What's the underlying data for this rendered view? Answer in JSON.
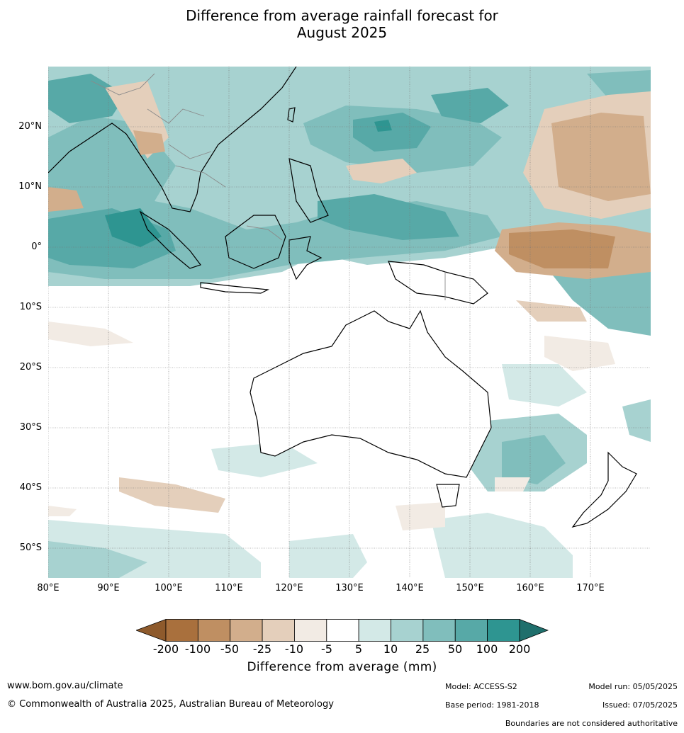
{
  "title": {
    "line1": "Difference from average rainfall forecast for",
    "line2": "August 2025"
  },
  "map": {
    "lat_labels": [
      "20°N",
      "10°N",
      "0°",
      "10°S",
      "20°S",
      "30°S",
      "40°S",
      "50°S"
    ],
    "lon_labels": [
      "80°E",
      "90°E",
      "100°E",
      "110°E",
      "120°E",
      "130°E",
      "140°E",
      "150°E",
      "160°E",
      "170°E"
    ],
    "colors": {
      "coast": "#000000",
      "borders": "#8a8a8a",
      "grid": "#777777"
    }
  },
  "legend": {
    "ticks": [
      "-200",
      "-100",
      "-50",
      "-25",
      "-10",
      "-5",
      "5",
      "10",
      "25",
      "50",
      "100",
      "200"
    ],
    "colors": [
      "#8e5a2c",
      "#a9703d",
      "#bf8f62",
      "#d2ae8c",
      "#e4cfbb",
      "#f2ebe4",
      "#ffffff",
      "#d3e9e7",
      "#a7d2d0",
      "#80bebc",
      "#57a9a7",
      "#2e9591",
      "#1f6f6c"
    ],
    "label": "Difference from average (mm)"
  },
  "footer": {
    "website": "www.bom.gov.au/climate",
    "copyright": "© Commonwealth of Australia 2025, Australian Bureau of Meteorology",
    "model": "Model: ACCESS-S2",
    "base_period": "Base period: 1981-2018",
    "model_run": "Model run: 05/05/2025",
    "issued": "Issued: 07/05/2025",
    "disclaimer": "Boundaries are not considered authoritative"
  }
}
